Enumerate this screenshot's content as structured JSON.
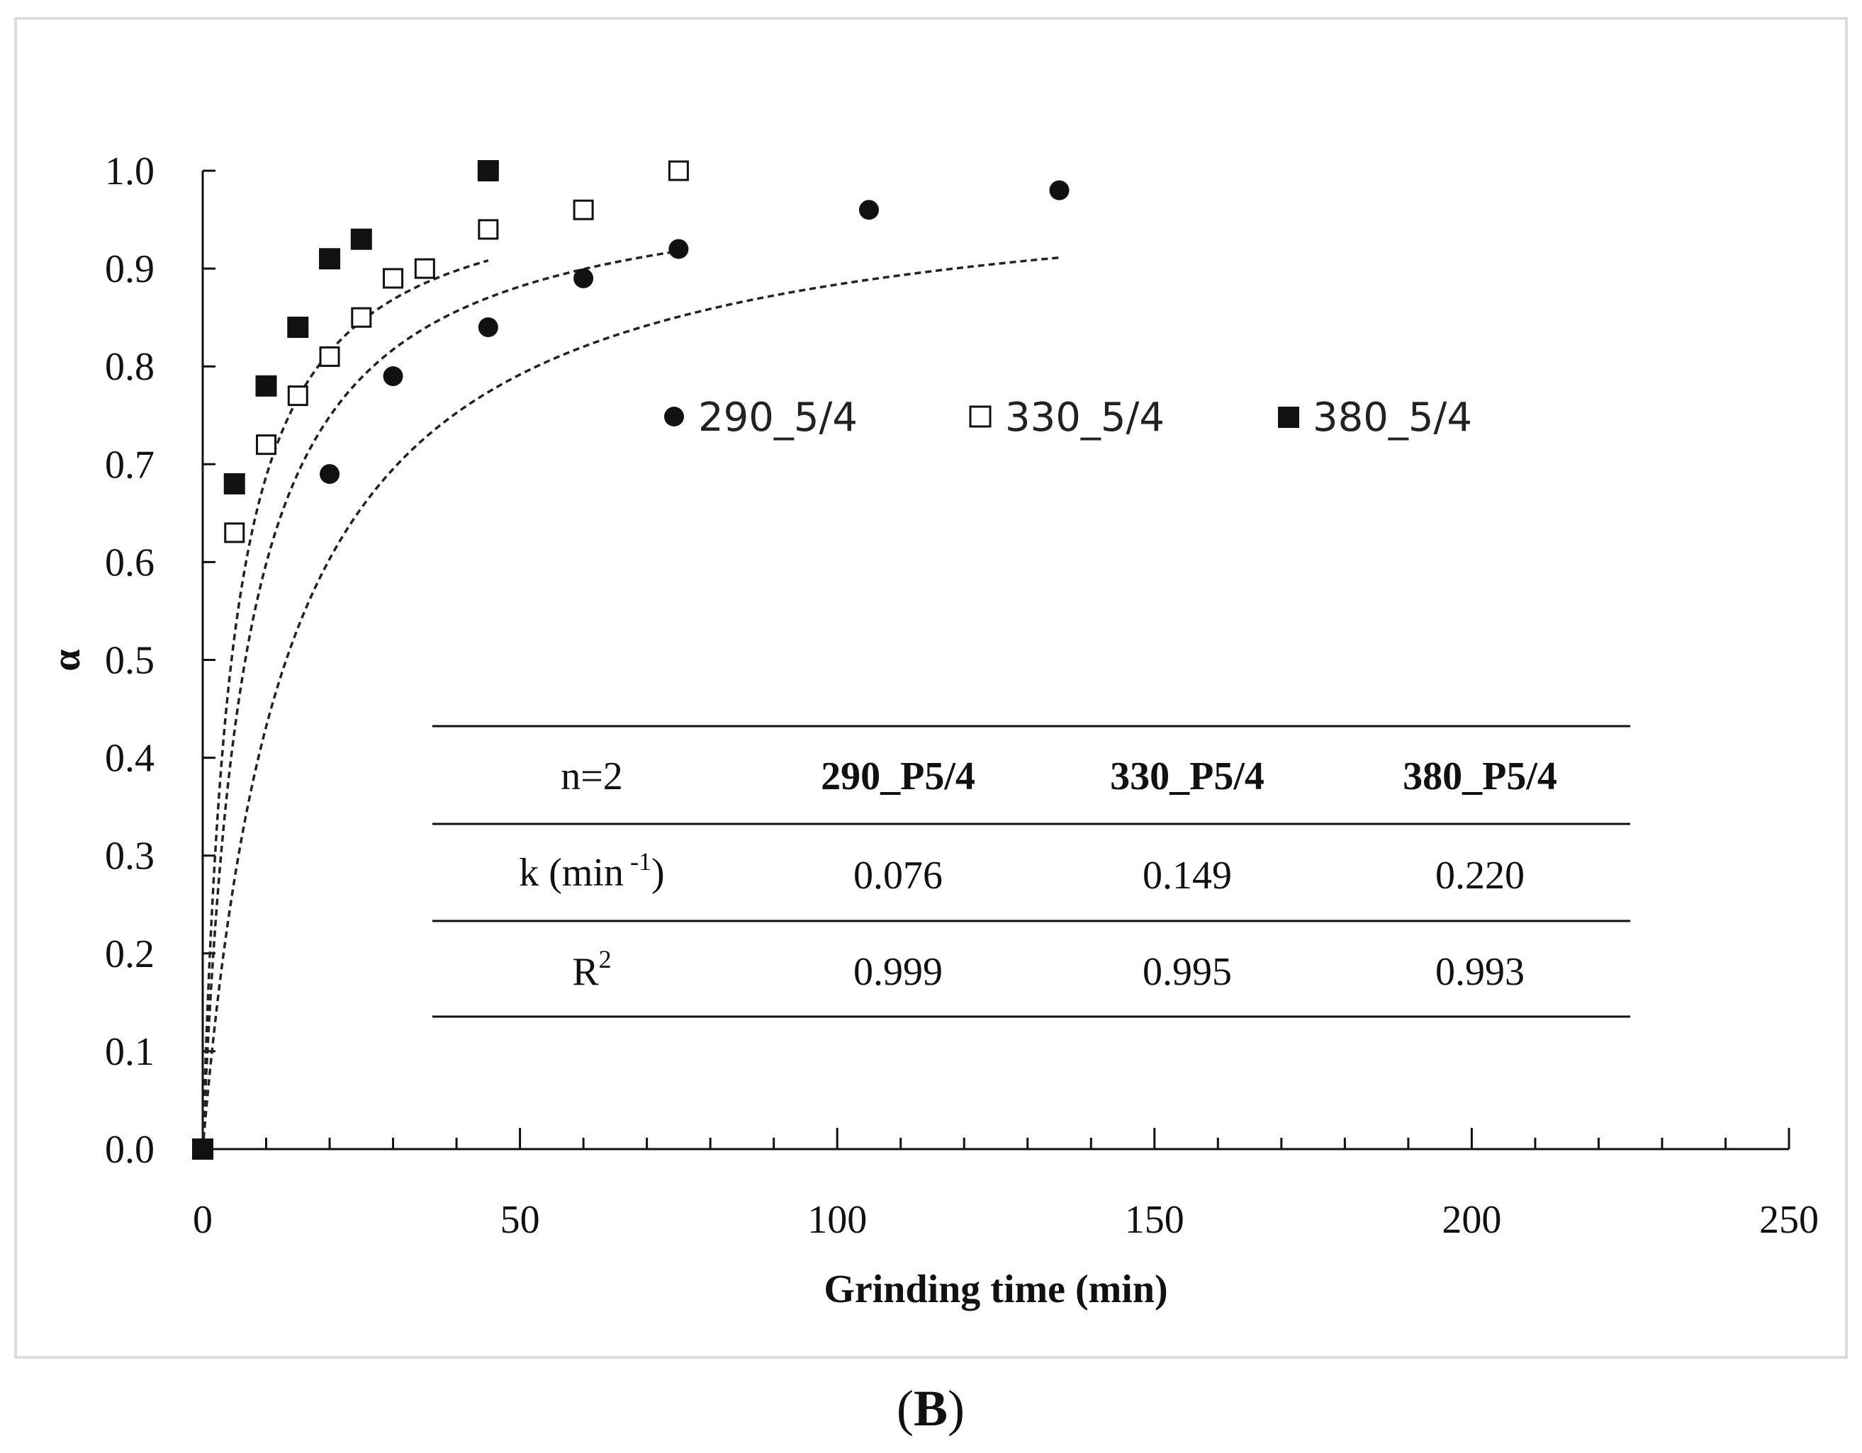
{
  "chart_data": {
    "type": "scatter",
    "xlabel": "Grinding time (min)",
    "ylabel": "α",
    "xlim": [
      0,
      250
    ],
    "ylim": [
      0,
      1.0
    ],
    "x_major_ticks": [
      0,
      50,
      100,
      150,
      200,
      250
    ],
    "x_minor_step": 10,
    "y_ticks": [
      0.0,
      0.1,
      0.2,
      0.3,
      0.4,
      0.5,
      0.6,
      0.7,
      0.8,
      0.9,
      1.0
    ],
    "x_tick_labels": [
      "0",
      "50",
      "100",
      "150",
      "200",
      "250"
    ],
    "y_tick_labels": [
      "0.0",
      "0.1",
      "0.2",
      "0.3",
      "0.4",
      "0.5",
      "0.6",
      "0.7",
      "0.8",
      "0.9",
      "1.0"
    ],
    "legend_position": "upper-center",
    "series": [
      {
        "name": "290_5/4",
        "marker": "filled-circle",
        "x": [
          0,
          20,
          30,
          45,
          60,
          75,
          105,
          135
        ],
        "y": [
          0.0,
          0.69,
          0.79,
          0.84,
          0.89,
          0.92,
          0.96,
          0.98
        ],
        "fit": {
          "model": "second-order",
          "k": 0.076,
          "x_end": 135
        }
      },
      {
        "name": "330_5/4",
        "marker": "open-square",
        "x": [
          0,
          5,
          10,
          15,
          20,
          25,
          30,
          35,
          45,
          60,
          75
        ],
        "y": [
          0.0,
          0.63,
          0.72,
          0.77,
          0.81,
          0.85,
          0.89,
          0.9,
          0.94,
          0.96,
          1.0
        ],
        "fit": {
          "model": "second-order",
          "k": 0.149,
          "x_end": 75
        }
      },
      {
        "name": "380_5/4",
        "marker": "filled-square",
        "x": [
          0,
          5,
          10,
          15,
          20,
          25,
          45
        ],
        "y": [
          0.0,
          0.68,
          0.78,
          0.84,
          0.91,
          0.93,
          1.0
        ],
        "fit": {
          "model": "second-order",
          "k": 0.22,
          "x_end": 45
        }
      }
    ]
  },
  "table": {
    "header": [
      "n=2",
      "290_P5/4",
      "330_P5/4",
      "380_P5/4"
    ],
    "rows": [
      {
        "label_main": "k (min",
        "label_sup": " -1",
        "label_end": ")",
        "values": [
          "0.076",
          "0.149",
          "0.220"
        ]
      },
      {
        "label_main": "R",
        "label_sup": "2",
        "label_end": "",
        "values": [
          "0.999",
          "0.995",
          "0.993"
        ]
      }
    ]
  },
  "caption": {
    "open": "(",
    "letter": "B",
    "close": ")"
  },
  "colors": {
    "ink": "#111111",
    "frame": "#dcdcdc",
    "background": "#ffffff"
  }
}
